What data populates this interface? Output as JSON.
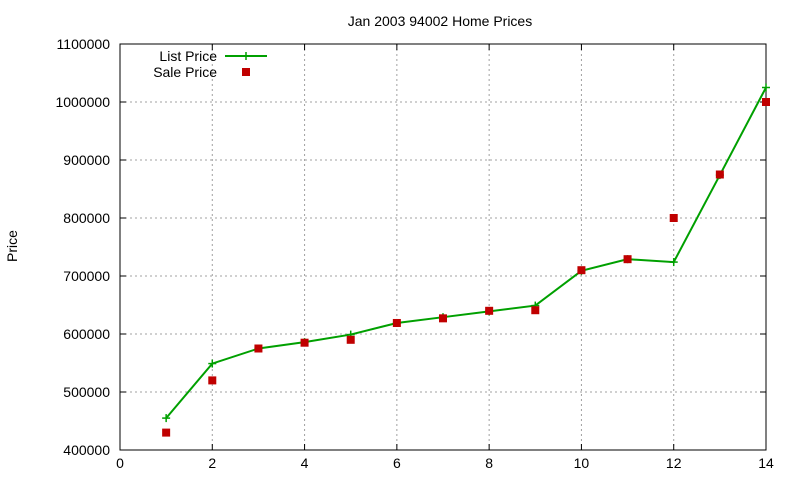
{
  "chart_data": {
    "type": "line",
    "title": "Jan 2003 94002 Home Prices",
    "xlabel": "",
    "ylabel": "Price",
    "xlim": [
      0,
      14
    ],
    "ylim": [
      400000,
      1100000
    ],
    "xticks": [
      0,
      2,
      4,
      6,
      8,
      10,
      12,
      14
    ],
    "yticks": [
      400000,
      500000,
      600000,
      700000,
      800000,
      900000,
      1000000,
      1100000
    ],
    "grid": true,
    "legend_position": "top-left",
    "series": [
      {
        "name": "List Price",
        "style": "line-with-plus-markers",
        "color": "#00a000",
        "x": [
          1,
          2,
          3,
          4,
          5,
          6,
          7,
          8,
          9,
          10,
          11,
          12,
          13,
          14
        ],
        "y": [
          455000,
          549000,
          575000,
          586000,
          599000,
          619000,
          629000,
          639000,
          649000,
          709000,
          729000,
          724000,
          874000,
          1025000
        ]
      },
      {
        "name": "Sale Price",
        "style": "square-markers",
        "color": "#c00000",
        "x": [
          1,
          2,
          3,
          4,
          5,
          6,
          7,
          8,
          9,
          10,
          11,
          12,
          13,
          14
        ],
        "y": [
          430000,
          520000,
          575000,
          585000,
          590000,
          619000,
          627000,
          640000,
          641000,
          710000,
          729000,
          800000,
          875000,
          1000000
        ]
      }
    ]
  }
}
